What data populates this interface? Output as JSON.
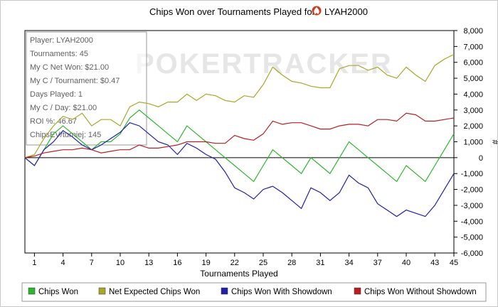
{
  "chart_data": {
    "type": "line",
    "title": "Chips Won over Tournaments Played for",
    "player_name": "LYAH2000",
    "xlabel": "Tournaments Played",
    "ylabel": "#",
    "x_ticks": [
      "1",
      "4",
      "7",
      "10",
      "13",
      "16",
      "19",
      "22",
      "25",
      "28",
      "31",
      "34",
      "37",
      "40",
      "43",
      "45"
    ],
    "xlim": [
      0,
      45
    ],
    "ylim": [
      -6000,
      8000
    ],
    "y_ticks": [
      "-6,000",
      "-5,000",
      "-4,000",
      "-3,000",
      "-2,000",
      "-1,000",
      "0",
      "1,000",
      "2,000",
      "3,000",
      "4,000",
      "5,000",
      "6,000",
      "7,000",
      "8,000"
    ],
    "grid": false,
    "watermark": "POKERTRACKER",
    "info_box": [
      "Player: LYAH2000",
      "Tournaments: 45",
      "My C Net Won: $21.00",
      "My C / Tournament: $0.47",
      "Days Played: 1",
      "My C / Day: $21.00",
      "ROI %: 46.67",
      "ChipsEV/turniej: 145"
    ],
    "legend_placement": "bottom",
    "series": [
      {
        "name": "Chips Won",
        "color": "#2db52d",
        "x": [
          0,
          1,
          2,
          3,
          4,
          5,
          6,
          7,
          8,
          9,
          10,
          11,
          12,
          13,
          14,
          15,
          16,
          17,
          18,
          19,
          20,
          21,
          22,
          23,
          24,
          25,
          26,
          27,
          28,
          29,
          30,
          31,
          32,
          33,
          34,
          35,
          36,
          37,
          38,
          39,
          40,
          41,
          42,
          43,
          44,
          45
        ],
        "values": [
          0,
          -500,
          500,
          1500,
          2000,
          1500,
          1000,
          500,
          1000,
          1000,
          1500,
          2500,
          3000,
          2500,
          2000,
          1500,
          1000,
          2000,
          1500,
          1000,
          500,
          0,
          -500,
          -1000,
          -1500,
          -500,
          500,
          0,
          -500,
          -1000,
          0,
          -500,
          -1000,
          0,
          1000,
          500,
          0,
          -500,
          -1000,
          -1500,
          -500,
          -1000,
          -1500,
          -500,
          500,
          1500
        ]
      },
      {
        "name": "Net Expected Chips Won",
        "color": "#a8a82a",
        "x": [
          0,
          1,
          2,
          3,
          4,
          5,
          6,
          7,
          8,
          9,
          10,
          11,
          12,
          13,
          14,
          15,
          16,
          17,
          18,
          19,
          20,
          21,
          22,
          23,
          24,
          25,
          26,
          27,
          28,
          29,
          30,
          31,
          32,
          33,
          34,
          35,
          36,
          37,
          38,
          39,
          40,
          41,
          42,
          43,
          44,
          45
        ],
        "values": [
          0,
          200,
          1200,
          2000,
          2600,
          2400,
          2800,
          2000,
          2400,
          2400,
          2000,
          3200,
          3500,
          3400,
          3200,
          3500,
          3500,
          4000,
          3600,
          4000,
          3900,
          3600,
          3500,
          3900,
          3800,
          4600,
          5700,
          5200,
          4800,
          4700,
          4500,
          4400,
          4400,
          5600,
          5800,
          5800,
          5500,
          5700,
          5200,
          5000,
          5700,
          5200,
          4800,
          5800,
          6200,
          6500
        ]
      },
      {
        "name": "Chips Won With Showdown",
        "color": "#2020a8",
        "x": [
          0,
          1,
          2,
          3,
          4,
          5,
          6,
          7,
          8,
          9,
          10,
          11,
          12,
          13,
          14,
          15,
          16,
          17,
          18,
          19,
          20,
          21,
          22,
          23,
          24,
          25,
          26,
          27,
          28,
          29,
          30,
          31,
          32,
          33,
          34,
          35,
          36,
          37,
          38,
          39,
          40,
          41,
          42,
          43,
          44,
          45
        ],
        "values": [
          0,
          -500,
          500,
          1000,
          1700,
          1300,
          800,
          500,
          800,
          1200,
          1600,
          2200,
          2000,
          1500,
          1000,
          800,
          200,
          900,
          600,
          200,
          -100,
          -900,
          -1900,
          -2200,
          -2600,
          -2000,
          -1800,
          -2200,
          -2700,
          -3200,
          -1900,
          -2200,
          -2700,
          -2200,
          -1100,
          -1600,
          -1900,
          -2900,
          -3300,
          -3700,
          -3300,
          -3500,
          -3700,
          -3000,
          -2000,
          -1000
        ]
      },
      {
        "name": "Chips Won Without Showdown",
        "color": "#b82020",
        "x": [
          0,
          1,
          2,
          3,
          4,
          5,
          6,
          7,
          8,
          9,
          10,
          11,
          12,
          13,
          14,
          15,
          16,
          17,
          18,
          19,
          20,
          21,
          22,
          23,
          24,
          25,
          26,
          27,
          28,
          29,
          30,
          31,
          32,
          33,
          34,
          35,
          36,
          37,
          38,
          39,
          40,
          41,
          42,
          43,
          44,
          45
        ],
        "values": [
          0,
          100,
          300,
          400,
          500,
          500,
          600,
          500,
          300,
          400,
          500,
          500,
          800,
          600,
          600,
          700,
          800,
          1000,
          1000,
          1000,
          900,
          900,
          1400,
          1200,
          1100,
          1500,
          2300,
          2100,
          2200,
          2200,
          2000,
          1800,
          1800,
          2000,
          2100,
          2100,
          2000,
          2400,
          2400,
          2300,
          2800,
          2700,
          2300,
          2300,
          2400,
          2500
        ]
      }
    ]
  }
}
